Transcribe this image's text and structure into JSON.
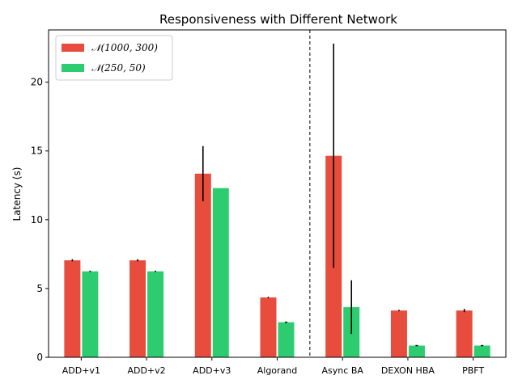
{
  "chart_data": {
    "type": "bar",
    "title": "Responsiveness with Different Network",
    "xlabel": "",
    "ylabel": "Latency (s)",
    "ylim": [
      0,
      23.8
    ],
    "yticks": [
      0,
      5,
      10,
      15,
      20
    ],
    "categories": [
      "ADD+v1",
      "ADD+v2",
      "ADD+v3",
      "Algorand",
      "Async BA",
      "DEXON HBA",
      "PBFT"
    ],
    "divider_after_category": "Algorand",
    "legend_position": "upper-left",
    "grid": false,
    "series": [
      {
        "name": "𝒩(1000, 300)",
        "color": "#e74c3c",
        "values": [
          7.05,
          7.05,
          13.35,
          4.35,
          14.65,
          3.4,
          3.4
        ],
        "errors": [
          0.08,
          0.08,
          2.0,
          0.05,
          8.15,
          0.05,
          0.12
        ]
      },
      {
        "name": "𝒩(250, 50)",
        "color": "#2ecc71",
        "values": [
          6.25,
          6.25,
          12.3,
          2.55,
          3.65,
          0.85,
          0.85
        ],
        "errors": [
          0.05,
          0.05,
          0.0,
          0.03,
          1.95,
          0.02,
          0.02
        ]
      }
    ]
  }
}
